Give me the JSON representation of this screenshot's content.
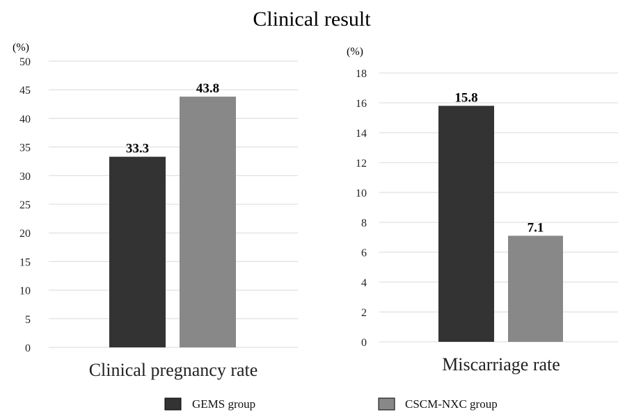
{
  "title": "Clinical result",
  "colors": {
    "gems": "#333333",
    "cscm": "#888888"
  },
  "legend": [
    {
      "label": "GEMS group",
      "color": "#333333"
    },
    {
      "label": "CSCM-NXC group",
      "color": "#888888"
    }
  ],
  "chart_data": [
    {
      "type": "bar",
      "title": "",
      "unit_label": "(%)",
      "xlabel": "Clinical pregnancy rate",
      "ylabel": "",
      "ylim": [
        0,
        50
      ],
      "yticks": [
        0,
        5,
        10,
        15,
        20,
        25,
        30,
        35,
        40,
        45,
        50
      ],
      "grid": true,
      "categories": [
        "Clinical pregnancy rate"
      ],
      "series": [
        {
          "name": "GEMS group",
          "values": [
            33.3
          ],
          "labels": [
            "33.3"
          ]
        },
        {
          "name": "CSCM-NXC group",
          "values": [
            43.8
          ],
          "labels": [
            "43.8"
          ]
        }
      ]
    },
    {
      "type": "bar",
      "title": "",
      "unit_label": "(%)",
      "xlabel": "Miscarriage rate",
      "ylabel": "",
      "ylim": [
        0,
        18
      ],
      "yticks": [
        0,
        2,
        4,
        6,
        8,
        10,
        12,
        14,
        16,
        18
      ],
      "grid": true,
      "categories": [
        "Miscarriage rate"
      ],
      "series": [
        {
          "name": "GEMS group",
          "values": [
            15.8
          ],
          "labels": [
            "15.8"
          ]
        },
        {
          "name": "CSCM-NXC group",
          "values": [
            7.1
          ],
          "labels": [
            "7.1"
          ]
        }
      ]
    }
  ]
}
